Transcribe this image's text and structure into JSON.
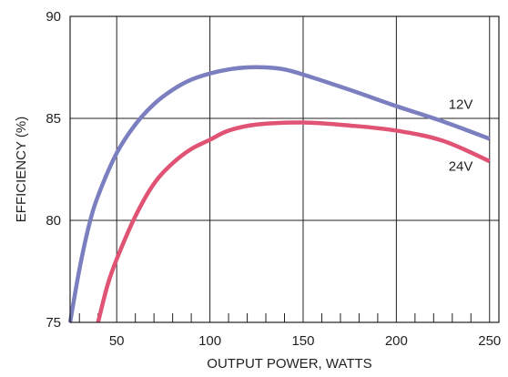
{
  "chart_data": {
    "type": "line",
    "title": "",
    "xlabel": "OUTPUT POWER, WATTS",
    "ylabel": "EFFICIENCY (%)",
    "xlim": [
      25,
      255
    ],
    "ylim": [
      75,
      90
    ],
    "x_ticks": [
      50,
      100,
      150,
      200,
      250
    ],
    "y_ticks": [
      75,
      80,
      85,
      90
    ],
    "x_minor_step": 10,
    "grid": true,
    "legend": "labels on curves",
    "series": [
      {
        "name": "12V",
        "color": "#7b7fc0",
        "x": [
          25,
          30,
          35,
          40,
          50,
          60,
          70,
          80,
          90,
          100,
          110,
          120,
          130,
          140,
          150,
          175,
          200,
          225,
          250
        ],
        "y": [
          75.0,
          77.6,
          79.7,
          81.2,
          83.3,
          84.7,
          85.7,
          86.4,
          86.9,
          87.2,
          87.4,
          87.5,
          87.5,
          87.4,
          87.15,
          86.4,
          85.6,
          84.85,
          84.0
        ]
      },
      {
        "name": "24V",
        "color": "#e05374",
        "x": [
          40,
          45,
          50,
          60,
          70,
          80,
          90,
          100,
          110,
          125,
          150,
          175,
          200,
          225,
          250
        ],
        "y": [
          75.0,
          76.8,
          78.1,
          80.2,
          81.8,
          82.8,
          83.5,
          83.95,
          84.4,
          84.7,
          84.8,
          84.65,
          84.4,
          83.9,
          82.9
        ]
      }
    ]
  }
}
